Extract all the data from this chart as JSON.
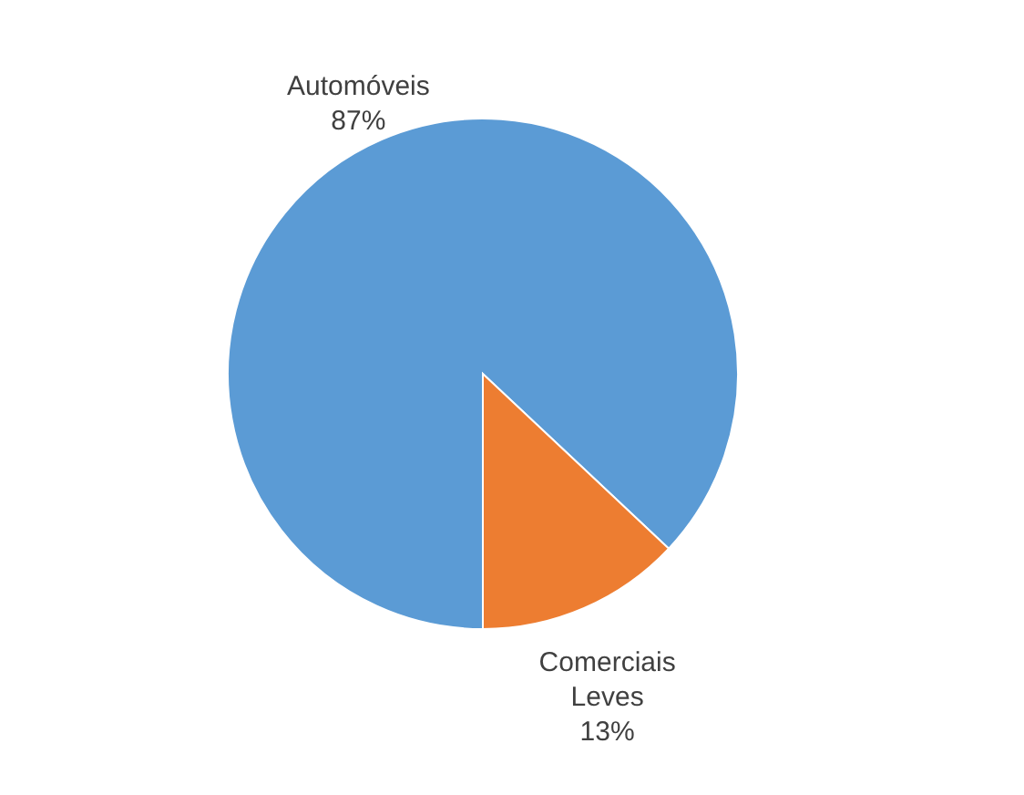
{
  "chart_data": {
    "type": "pie",
    "categories": [
      "Automóveis",
      "Comerciais Leves"
    ],
    "values": [
      87,
      13
    ],
    "colors": [
      "#5b9bd5",
      "#ed7d31"
    ],
    "value_labels": [
      "87%",
      "13%"
    ],
    "legend": false
  }
}
